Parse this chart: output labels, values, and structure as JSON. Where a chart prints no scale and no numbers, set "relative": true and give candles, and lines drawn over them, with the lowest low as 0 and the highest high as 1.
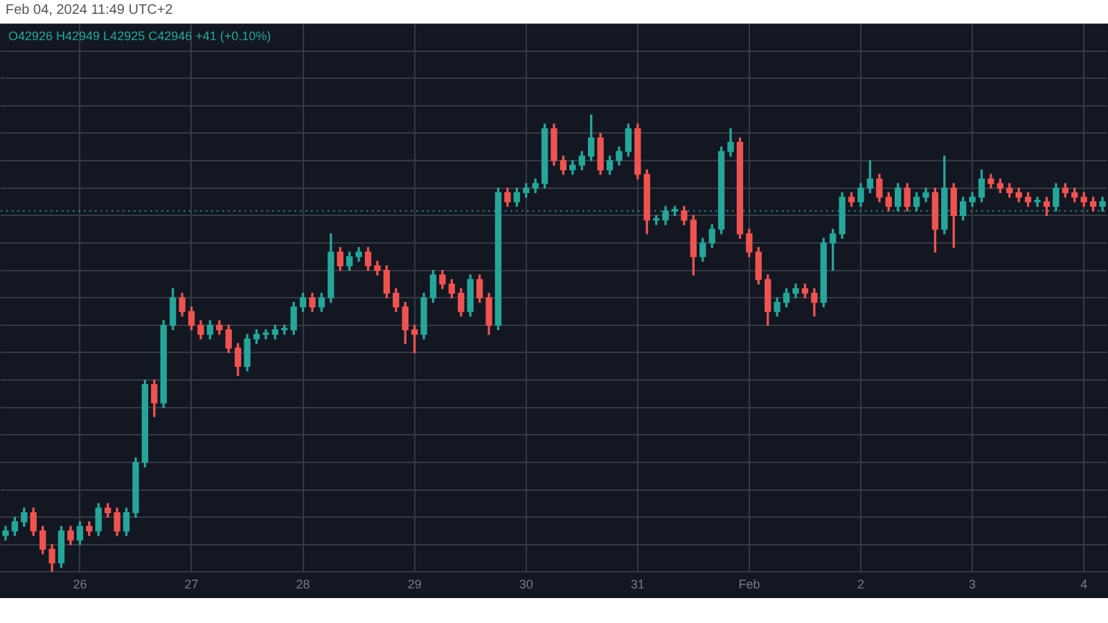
{
  "chart_data": {
    "type": "candlestick",
    "relative": true,
    "grid": true,
    "annotations": [
      "Feb 04, 2024 11:49 UTC+2",
      "O42926 H42949 L42925 C42946 +41 (+0.10%)"
    ],
    "ref_lines": [
      {
        "axis": "y",
        "value": 0.79,
        "color": "#26a69a",
        "line_style": "dotted"
      }
    ],
    "categories": [
      null,
      null,
      null,
      null,
      null,
      null,
      null,
      null,
      "26",
      null,
      null,
      null,
      null,
      null,
      null,
      null,
      null,
      null,
      null,
      null,
      "27",
      null,
      null,
      null,
      null,
      null,
      null,
      null,
      null,
      null,
      null,
      null,
      "28",
      null,
      null,
      null,
      null,
      null,
      null,
      null,
      null,
      null,
      null,
      null,
      "29",
      null,
      null,
      null,
      null,
      null,
      null,
      null,
      null,
      null,
      null,
      null,
      "30",
      null,
      null,
      null,
      null,
      null,
      null,
      null,
      null,
      null,
      null,
      null,
      "31",
      null,
      null,
      null,
      null,
      null,
      null,
      null,
      null,
      null,
      null,
      null,
      "Feb",
      null,
      null,
      null,
      null,
      null,
      null,
      null,
      null,
      null,
      null,
      null,
      "2",
      null,
      null,
      null,
      null,
      null,
      null,
      null,
      null,
      null,
      null,
      null,
      "3",
      null,
      null,
      null,
      null,
      null,
      null,
      null,
      null,
      null,
      null,
      null,
      "4",
      null,
      null
    ],
    "ohlc": [
      [
        0.08,
        0.1,
        0.07,
        0.09
      ],
      [
        0.09,
        0.12,
        0.08,
        0.11
      ],
      [
        0.11,
        0.14,
        0.1,
        0.13
      ],
      [
        0.13,
        0.14,
        0.08,
        0.09
      ],
      [
        0.09,
        0.1,
        0.04,
        0.05
      ],
      [
        0.05,
        0.06,
        0,
        0.02
      ],
      [
        0.02,
        0.1,
        0.01,
        0.09
      ],
      [
        0.09,
        0.1,
        0.06,
        0.07
      ],
      [
        0.07,
        0.11,
        0.06,
        0.1
      ],
      [
        0.1,
        0.11,
        0.08,
        0.09
      ],
      [
        0.09,
        0.15,
        0.08,
        0.14
      ],
      [
        0.14,
        0.15,
        0.12,
        0.13
      ],
      [
        0.13,
        0.14,
        0.08,
        0.09
      ],
      [
        0.09,
        0.14,
        0.08,
        0.13
      ],
      [
        0.13,
        0.25,
        0.12,
        0.24
      ],
      [
        0.24,
        0.42,
        0.23,
        0.41
      ],
      [
        0.41,
        0.42,
        0.34,
        0.37
      ],
      [
        0.37,
        0.55,
        0.36,
        0.54
      ],
      [
        0.54,
        0.62,
        0.53,
        0.6
      ],
      [
        0.6,
        0.61,
        0.56,
        0.57
      ],
      [
        0.57,
        0.58,
        0.53,
        0.54
      ],
      [
        0.54,
        0.55,
        0.51,
        0.52
      ],
      [
        0.52,
        0.55,
        0.51,
        0.54
      ],
      [
        0.54,
        0.55,
        0.52,
        0.53
      ],
      [
        0.53,
        0.54,
        0.48,
        0.49
      ],
      [
        0.49,
        0.5,
        0.43,
        0.45
      ],
      [
        0.45,
        0.52,
        0.44,
        0.51
      ],
      [
        0.51,
        0.53,
        0.5,
        0.52
      ],
      [
        0.52,
        0.53,
        0.51,
        0.52
      ],
      [
        0.52,
        0.54,
        0.51,
        0.53
      ],
      [
        0.53,
        0.54,
        0.52,
        0.53
      ],
      [
        0.53,
        0.59,
        0.52,
        0.58
      ],
      [
        0.58,
        0.61,
        0.57,
        0.6
      ],
      [
        0.6,
        0.61,
        0.57,
        0.58
      ],
      [
        0.58,
        0.61,
        0.57,
        0.6
      ],
      [
        0.6,
        0.74,
        0.59,
        0.7
      ],
      [
        0.7,
        0.71,
        0.66,
        0.67
      ],
      [
        0.67,
        0.7,
        0.66,
        0.69
      ],
      [
        0.69,
        0.71,
        0.68,
        0.7
      ],
      [
        0.7,
        0.71,
        0.66,
        0.67
      ],
      [
        0.67,
        0.68,
        0.65,
        0.66
      ],
      [
        0.66,
        0.67,
        0.6,
        0.61
      ],
      [
        0.61,
        0.62,
        0.57,
        0.58
      ],
      [
        0.58,
        0.59,
        0.5,
        0.53
      ],
      [
        0.53,
        0.54,
        0.48,
        0.52
      ],
      [
        0.52,
        0.61,
        0.51,
        0.6
      ],
      [
        0.6,
        0.66,
        0.59,
        0.65
      ],
      [
        0.65,
        0.66,
        0.62,
        0.63
      ],
      [
        0.63,
        0.64,
        0.6,
        0.61
      ],
      [
        0.61,
        0.62,
        0.56,
        0.57
      ],
      [
        0.57,
        0.65,
        0.56,
        0.64
      ],
      [
        0.64,
        0.65,
        0.59,
        0.6
      ],
      [
        0.6,
        0.61,
        0.52,
        0.54
      ],
      [
        0.54,
        0.84,
        0.53,
        0.83
      ],
      [
        0.83,
        0.84,
        0.8,
        0.81
      ],
      [
        0.81,
        0.84,
        0.8,
        0.83
      ],
      [
        0.83,
        0.85,
        0.82,
        0.84
      ],
      [
        0.84,
        0.86,
        0.83,
        0.85
      ],
      [
        0.85,
        0.98,
        0.84,
        0.97
      ],
      [
        0.97,
        0.98,
        0.89,
        0.9
      ],
      [
        0.9,
        0.91,
        0.87,
        0.88
      ],
      [
        0.88,
        0.9,
        0.87,
        0.89
      ],
      [
        0.89,
        0.92,
        0.88,
        0.91
      ],
      [
        0.91,
        1,
        0.9,
        0.95
      ],
      [
        0.95,
        0.96,
        0.87,
        0.88
      ],
      [
        0.88,
        0.91,
        0.87,
        0.9
      ],
      [
        0.9,
        0.93,
        0.89,
        0.92
      ],
      [
        0.92,
        0.98,
        0.91,
        0.97
      ],
      [
        0.97,
        0.98,
        0.86,
        0.87
      ],
      [
        0.87,
        0.88,
        0.74,
        0.77
      ],
      [
        0.77,
        0.78,
        0.76,
        0.77
      ],
      [
        0.77,
        0.8,
        0.76,
        0.79
      ],
      [
        0.79,
        0.8,
        0.78,
        0.79
      ],
      [
        0.79,
        0.8,
        0.76,
        0.77
      ],
      [
        0.77,
        0.78,
        0.65,
        0.69
      ],
      [
        0.69,
        0.73,
        0.68,
        0.72
      ],
      [
        0.72,
        0.76,
        0.71,
        0.75
      ],
      [
        0.75,
        0.93,
        0.74,
        0.92
      ],
      [
        0.92,
        0.97,
        0.91,
        0.94
      ],
      [
        0.94,
        0.95,
        0.73,
        0.74
      ],
      [
        0.74,
        0.75,
        0.69,
        0.7
      ],
      [
        0.7,
        0.71,
        0.63,
        0.64
      ],
      [
        0.64,
        0.65,
        0.54,
        0.57
      ],
      [
        0.57,
        0.6,
        0.56,
        0.59
      ],
      [
        0.59,
        0.62,
        0.58,
        0.61
      ],
      [
        0.61,
        0.63,
        0.6,
        0.62
      ],
      [
        0.62,
        0.63,
        0.6,
        0.61
      ],
      [
        0.61,
        0.62,
        0.56,
        0.59
      ],
      [
        0.59,
        0.73,
        0.58,
        0.72
      ],
      [
        0.72,
        0.75,
        0.66,
        0.74
      ],
      [
        0.74,
        0.83,
        0.73,
        0.82
      ],
      [
        0.82,
        0.83,
        0.8,
        0.81
      ],
      [
        0.81,
        0.85,
        0.8,
        0.84
      ],
      [
        0.84,
        0.9,
        0.83,
        0.86
      ],
      [
        0.86,
        0.87,
        0.81,
        0.82
      ],
      [
        0.82,
        0.83,
        0.79,
        0.8
      ],
      [
        0.8,
        0.85,
        0.79,
        0.84
      ],
      [
        0.84,
        0.85,
        0.79,
        0.8
      ],
      [
        0.8,
        0.83,
        0.79,
        0.82
      ],
      [
        0.82,
        0.84,
        0.81,
        0.83
      ],
      [
        0.83,
        0.84,
        0.7,
        0.75
      ],
      [
        0.75,
        0.91,
        0.74,
        0.84
      ],
      [
        0.84,
        0.85,
        0.71,
        0.78
      ],
      [
        0.78,
        0.82,
        0.77,
        0.81
      ],
      [
        0.81,
        0.83,
        0.8,
        0.82
      ],
      [
        0.82,
        0.88,
        0.81,
        0.86
      ],
      [
        0.86,
        0.87,
        0.84,
        0.85
      ],
      [
        0.85,
        0.86,
        0.83,
        0.84
      ],
      [
        0.84,
        0.85,
        0.82,
        0.83
      ],
      [
        0.83,
        0.84,
        0.81,
        0.82
      ],
      [
        0.82,
        0.83,
        0.8,
        0.81
      ],
      [
        0.81,
        0.82,
        0.8,
        0.81
      ],
      [
        0.81,
        0.82,
        0.78,
        0.8
      ],
      [
        0.8,
        0.85,
        0.79,
        0.84
      ],
      [
        0.84,
        0.85,
        0.82,
        0.83
      ],
      [
        0.83,
        0.84,
        0.81,
        0.82
      ],
      [
        0.82,
        0.83,
        0.8,
        0.81
      ],
      [
        0.81,
        0.82,
        0.79,
        0.8
      ],
      [
        0.8,
        0.82,
        0.79,
        0.81
      ]
    ],
    "colors": [
      "#26a69a",
      "#26a69a",
      "#26a69a",
      "#ef5350",
      "#ef5350",
      "#ef5350",
      "#26a69a",
      "#ef5350",
      "#26a69a",
      "#ef5350",
      "#26a69a",
      "#ef5350",
      "#ef5350",
      "#26a69a",
      "#26a69a",
      "#26a69a",
      "#ef5350",
      "#26a69a",
      "#26a69a",
      "#ef5350",
      "#ef5350",
      "#ef5350",
      "#26a69a",
      "#ef5350",
      "#ef5350",
      "#ef5350",
      "#26a69a",
      "#26a69a",
      "#26a69a",
      "#26a69a",
      "#26a69a",
      "#26a69a",
      "#26a69a",
      "#ef5350",
      "#26a69a",
      "#26a69a",
      "#ef5350",
      "#26a69a",
      "#26a69a",
      "#ef5350",
      "#ef5350",
      "#ef5350",
      "#ef5350",
      "#ef5350",
      "#ef5350",
      "#26a69a",
      "#26a69a",
      "#ef5350",
      "#ef5350",
      "#ef5350",
      "#26a69a",
      "#ef5350",
      "#ef5350",
      "#26a69a",
      "#ef5350",
      "#26a69a",
      "#26a69a",
      "#26a69a",
      "#26a69a",
      "#ef5350",
      "#ef5350",
      "#26a69a",
      "#26a69a",
      "#26a69a",
      "#ef5350",
      "#26a69a",
      "#26a69a",
      "#26a69a",
      "#ef5350",
      "#ef5350",
      "#26a69a",
      "#26a69a",
      "#26a69a",
      "#ef5350",
      "#ef5350",
      "#26a69a",
      "#26a69a",
      "#26a69a",
      "#26a69a",
      "#ef5350",
      "#ef5350",
      "#ef5350",
      "#ef5350",
      "#26a69a",
      "#26a69a",
      "#26a69a",
      "#ef5350",
      "#ef5350",
      "#26a69a",
      "#26a69a",
      "#26a69a",
      "#ef5350",
      "#26a69a",
      "#26a69a",
      "#ef5350",
      "#ef5350",
      "#26a69a",
      "#ef5350",
      "#26a69a",
      "#26a69a",
      "#ef5350",
      "#26a69a",
      "#ef5350",
      "#26a69a",
      "#26a69a",
      "#26a69a",
      "#ef5350",
      "#ef5350",
      "#ef5350",
      "#ef5350",
      "#ef5350",
      "#26a69a",
      "#ef5350",
      "#26a69a",
      "#ef5350",
      "#ef5350",
      "#ef5350",
      "#ef5350",
      "#26a69a"
    ]
  }
}
